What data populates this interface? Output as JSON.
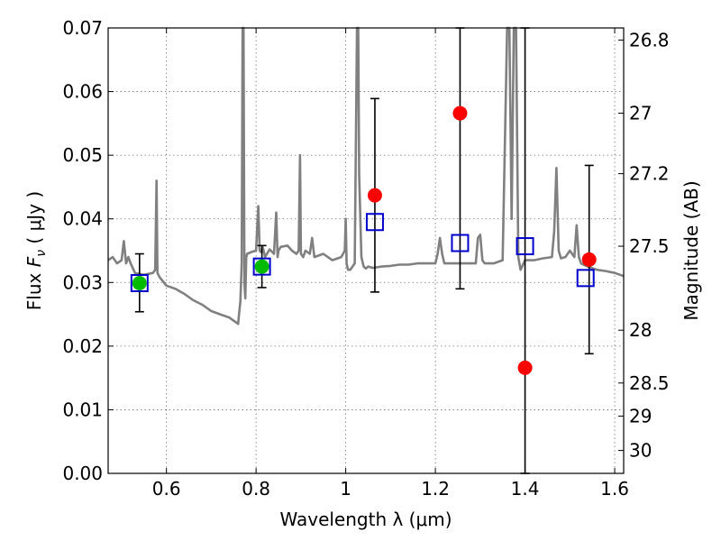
{
  "chart_data": {
    "type": "scatter",
    "xlabel": "Wavelength  λ (μm)",
    "ylabel_prefix": "Flux  ",
    "ylabel_symbol": "F",
    "ylabel_subscript": "ν",
    "ylabel_suffix": "  ( μJy )",
    "y2label": "Magnitude (AB)",
    "xlim": [
      0.47,
      1.62
    ],
    "ylim": [
      0.0,
      0.07
    ],
    "grid": true,
    "x_ticks": [
      0.6,
      0.8,
      1.0,
      1.2,
      1.4,
      1.6
    ],
    "x_tick_labels": [
      "0.6",
      "0.8",
      "1",
      "1.2",
      "1.4",
      "1.6"
    ],
    "y_ticks": [
      0.0,
      0.01,
      0.02,
      0.03,
      0.04,
      0.05,
      0.06,
      0.07
    ],
    "y_tick_labels": [
      "0.00",
      "0.01",
      "0.02",
      "0.03",
      "0.04",
      "0.05",
      "0.06",
      "0.07"
    ],
    "magnitude_ticks": [
      {
        "label": "26.8",
        "flux": 0.0681
      },
      {
        "label": "27",
        "flux": 0.0566
      },
      {
        "label": "27.2",
        "flux": 0.0471
      },
      {
        "label": "27.5",
        "flux": 0.0357
      },
      {
        "label": "28",
        "flux": 0.0225
      },
      {
        "label": "28.5",
        "flux": 0.0142
      },
      {
        "label": "29",
        "flux": 0.009
      },
      {
        "label": "30",
        "flux": 0.0036
      }
    ],
    "series": [
      {
        "name": "model spectrum",
        "style": "line",
        "color": "#808080",
        "x": [
          0.47,
          0.48,
          0.49,
          0.5,
          0.505,
          0.51,
          0.515,
          0.52,
          0.53,
          0.55,
          0.57,
          0.575,
          0.578,
          0.58,
          0.585,
          0.6,
          0.62,
          0.64,
          0.66,
          0.68,
          0.7,
          0.72,
          0.74,
          0.76,
          0.762,
          0.765,
          0.768,
          0.77,
          0.772,
          0.774,
          0.776,
          0.778,
          0.78,
          0.79,
          0.8,
          0.805,
          0.808,
          0.81,
          0.812,
          0.815,
          0.82,
          0.83,
          0.84,
          0.845,
          0.848,
          0.85,
          0.855,
          0.87,
          0.88,
          0.89,
          0.895,
          0.898,
          0.9,
          0.905,
          0.91,
          0.92,
          0.925,
          0.93,
          0.95,
          0.97,
          0.99,
          0.998,
          1.0,
          1.002,
          1.005,
          1.01,
          1.02,
          1.025,
          1.028,
          1.03,
          1.035,
          1.04,
          1.045,
          1.05,
          1.06,
          1.08,
          1.1,
          1.12,
          1.14,
          1.16,
          1.18,
          1.2,
          1.205,
          1.21,
          1.215,
          1.22,
          1.24,
          1.26,
          1.28,
          1.29,
          1.295,
          1.3,
          1.305,
          1.31,
          1.33,
          1.35,
          1.36,
          1.365,
          1.37,
          1.375,
          1.38,
          1.385,
          1.39,
          1.4,
          1.42,
          1.44,
          1.46,
          1.465,
          1.47,
          1.475,
          1.48,
          1.49,
          1.5,
          1.51,
          1.515,
          1.52,
          1.525,
          1.53,
          1.54,
          1.56,
          1.58,
          1.6,
          1.62
        ],
        "y": [
          0.0335,
          0.034,
          0.033,
          0.0335,
          0.0365,
          0.033,
          0.034,
          0.033,
          0.0315,
          0.0312,
          0.0315,
          0.032,
          0.046,
          0.0315,
          0.0308,
          0.0295,
          0.029,
          0.0282,
          0.0272,
          0.0265,
          0.0255,
          0.025,
          0.0245,
          0.0235,
          0.025,
          0.027,
          0.033,
          0.07,
          0.07,
          0.03,
          0.0275,
          0.034,
          0.0345,
          0.0348,
          0.035,
          0.042,
          0.035,
          0.0348,
          0.035,
          0.0355,
          0.034,
          0.0352,
          0.0345,
          0.041,
          0.034,
          0.035,
          0.0356,
          0.0358,
          0.035,
          0.0345,
          0.035,
          0.05,
          0.0345,
          0.034,
          0.035,
          0.0345,
          0.037,
          0.034,
          0.0345,
          0.0335,
          0.034,
          0.035,
          0.04,
          0.033,
          0.032,
          0.032,
          0.033,
          0.07,
          0.07,
          0.047,
          0.034,
          0.0325,
          0.0322,
          0.0325,
          0.0323,
          0.0325,
          0.0326,
          0.0328,
          0.0328,
          0.033,
          0.033,
          0.033,
          0.0345,
          0.037,
          0.0345,
          0.033,
          0.033,
          0.033,
          0.033,
          0.033,
          0.037,
          0.0375,
          0.0335,
          0.033,
          0.033,
          0.0335,
          0.07,
          0.07,
          0.04,
          0.07,
          0.07,
          0.034,
          0.032,
          0.0335,
          0.0335,
          0.0338,
          0.034,
          0.038,
          0.048,
          0.035,
          0.0338,
          0.034,
          0.035,
          0.034,
          0.039,
          0.034,
          0.033,
          0.0328,
          0.0325,
          0.032,
          0.0318,
          0.0315,
          0.031
        ]
      },
      {
        "name": "model band fluxes",
        "style": "open-square",
        "color": "#0000cc",
        "x": [
          0.54,
          0.813,
          1.065,
          1.255,
          1.4,
          1.535
        ],
        "y": [
          0.0299,
          0.0325,
          0.0395,
          0.0362,
          0.0357,
          0.0307
        ]
      },
      {
        "name": "observed (red)",
        "style": "filled-circle",
        "color": "#ff0000",
        "x": [
          1.065,
          1.255,
          1.4,
          1.543
        ],
        "y": [
          0.0437,
          0.0566,
          0.0166,
          0.0336
        ],
        "yerr_low": [
          0.0152,
          0.0276,
          0.0166,
          0.0148
        ],
        "yerr_high": [
          0.0152,
          0.0134,
          0.0534,
          0.0148
        ]
      },
      {
        "name": "observed (green)",
        "style": "filled-circle",
        "color": "#00bb00",
        "x": [
          0.54,
          0.813
        ],
        "y": [
          0.0299,
          0.0325
        ],
        "yerr_low": [
          0.0045,
          0.0033
        ],
        "yerr_high": [
          0.0046,
          0.0033
        ]
      }
    ]
  }
}
